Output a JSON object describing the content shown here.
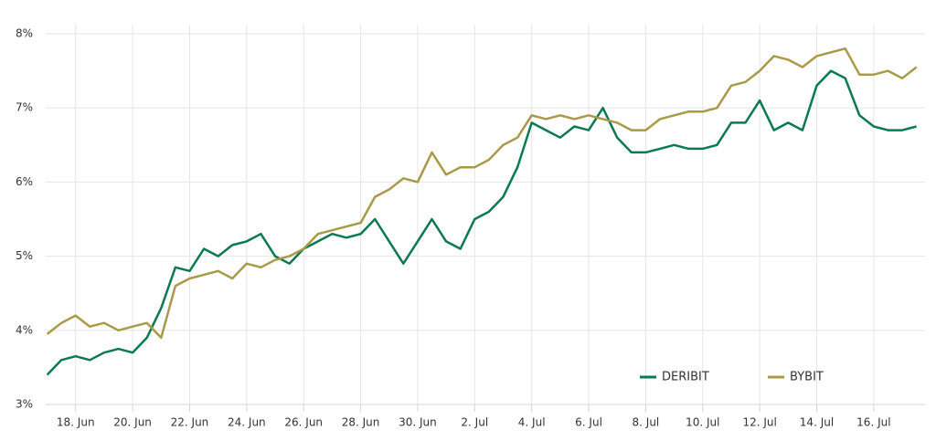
{
  "chart_data": {
    "type": "line",
    "x": [
      17.0,
      17.5,
      18.0,
      18.5,
      19.0,
      19.5,
      20.0,
      20.5,
      21.0,
      21.5,
      22.0,
      22.5,
      23.0,
      23.5,
      24.0,
      24.5,
      25.0,
      25.5,
      26.0,
      26.5,
      27.0,
      27.5,
      28.0,
      28.5,
      29.0,
      29.5,
      30.0,
      30.5,
      31.0,
      31.5,
      32.0,
      32.5,
      33.0,
      33.5,
      34.0,
      34.5,
      35.0,
      35.5,
      36.0,
      36.5,
      37.0,
      37.5,
      38.0,
      38.5,
      39.0,
      39.5,
      40.0,
      40.5,
      41.0,
      41.5,
      42.0,
      42.5,
      43.0,
      43.5,
      44.0,
      44.5,
      45.0,
      45.5,
      46.0,
      46.5,
      47.0,
      47.5
    ],
    "series": [
      {
        "name": "DERIBIT",
        "color": "#0b7a4f",
        "values": [
          3.4,
          3.6,
          3.65,
          3.6,
          3.7,
          3.75,
          3.7,
          3.9,
          4.3,
          4.85,
          4.8,
          5.1,
          5.0,
          5.15,
          5.2,
          5.3,
          5.0,
          4.9,
          5.1,
          5.2,
          5.3,
          5.25,
          5.3,
          5.5,
          5.2,
          4.9,
          5.2,
          5.5,
          5.2,
          5.1,
          5.5,
          5.6,
          5.8,
          6.2,
          6.8,
          6.7,
          6.6,
          6.75,
          6.7,
          7.0,
          6.6,
          6.4,
          6.4,
          6.45,
          6.5,
          6.45,
          6.45,
          6.5,
          6.8,
          6.8,
          7.1,
          6.7,
          6.8,
          6.7,
          7.3,
          7.5,
          7.4,
          6.9,
          6.75,
          6.7,
          6.7,
          6.75
        ]
      },
      {
        "name": "BYBIT",
        "color": "#a89a48",
        "values": [
          3.95,
          4.1,
          4.2,
          4.05,
          4.1,
          4.0,
          4.05,
          4.1,
          3.9,
          4.6,
          4.7,
          4.75,
          4.8,
          4.7,
          4.9,
          4.85,
          4.95,
          5.0,
          5.1,
          5.3,
          5.35,
          5.4,
          5.45,
          5.8,
          5.9,
          6.05,
          6.0,
          6.4,
          6.1,
          6.2,
          6.2,
          6.3,
          6.5,
          6.6,
          6.9,
          6.85,
          6.9,
          6.85,
          6.9,
          6.85,
          6.8,
          6.7,
          6.7,
          6.85,
          6.9,
          6.95,
          6.95,
          7.0,
          7.3,
          7.35,
          7.5,
          7.7,
          7.65,
          7.55,
          7.7,
          7.75,
          7.8,
          7.45,
          7.45,
          7.5,
          7.4,
          7.55
        ]
      }
    ],
    "xlim": [
      16.95,
      47.8
    ],
    "xticks": [
      {
        "value": 18,
        "label": "18. Jun"
      },
      {
        "value": 20,
        "label": "20. Jun"
      },
      {
        "value": 22,
        "label": "22. Jun"
      },
      {
        "value": 24,
        "label": "24. Jun"
      },
      {
        "value": 26,
        "label": "26. Jun"
      },
      {
        "value": 28,
        "label": "28. Jun"
      },
      {
        "value": 30,
        "label": "30. Jun"
      },
      {
        "value": 32,
        "label": "2. Jul"
      },
      {
        "value": 34,
        "label": "4. Jul"
      },
      {
        "value": 36,
        "label": "6. Jul"
      },
      {
        "value": 38,
        "label": "8. Jul"
      },
      {
        "value": 40,
        "label": "10. Jul"
      },
      {
        "value": 42,
        "label": "12. Jul"
      },
      {
        "value": 44,
        "label": "14. Jul"
      },
      {
        "value": 46,
        "label": "16. Jul"
      }
    ],
    "ylim": [
      3,
      8
    ],
    "yticks": [
      {
        "value": 3,
        "label": "3%"
      },
      {
        "value": 4,
        "label": "4%"
      },
      {
        "value": 5,
        "label": "5%"
      },
      {
        "value": 6,
        "label": "6%"
      },
      {
        "value": 7,
        "label": "7%"
      },
      {
        "value": 8,
        "label": "8%"
      }
    ],
    "grid": true,
    "legend": "lower right"
  }
}
